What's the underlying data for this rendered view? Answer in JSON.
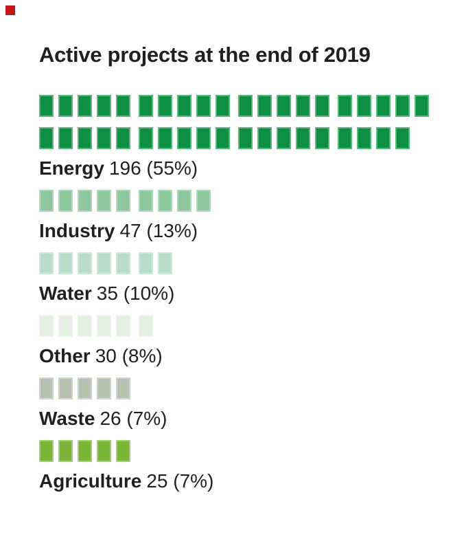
{
  "title": "Active projects at the end of 2019",
  "corner_marker": {
    "color": "#c3161b"
  },
  "text_color": "#231f20",
  "chart_data": {
    "type": "bar",
    "style": "pictogram-waffle, 1 block = 5 projects, blocks grouped in fives",
    "title": "Active projects at the end of 2019",
    "categories": [
      "Energy",
      "Industry",
      "Water",
      "Other",
      "Waste",
      "Agriculture"
    ],
    "values": [
      196,
      47,
      35,
      30,
      26,
      25
    ],
    "percents": [
      55,
      13,
      10,
      8,
      7,
      7
    ],
    "blocks_per_category": [
      39,
      9,
      7,
      6,
      5,
      5
    ],
    "block_unit": 5,
    "max_groups_per_line": 4,
    "legend_position": "none",
    "grid": false,
    "colors": [
      "#0d9044",
      "#8ec79c",
      "#b8dbca",
      "#e3efe0",
      "#b6c1b0",
      "#79b637"
    ]
  },
  "rows": [
    {
      "label": "Energy",
      "value_text": "196 (55%)",
      "blocks": 39,
      "color": "#0d9044"
    },
    {
      "label": "Industry",
      "value_text": "47 (13%)",
      "blocks": 9,
      "color": "#8ec79c"
    },
    {
      "label": "Water",
      "value_text": "35 (10%)",
      "blocks": 7,
      "color": "#b8dbca"
    },
    {
      "label": "Other",
      "value_text": "30 (8%)",
      "blocks": 6,
      "color": "#e3efe0"
    },
    {
      "label": "Waste",
      "value_text": "26 (7%)",
      "blocks": 5,
      "color": "#b6c1b0"
    },
    {
      "label": "Agriculture",
      "value_text": "25 (7%)",
      "blocks": 5,
      "color": "#79b637"
    }
  ]
}
